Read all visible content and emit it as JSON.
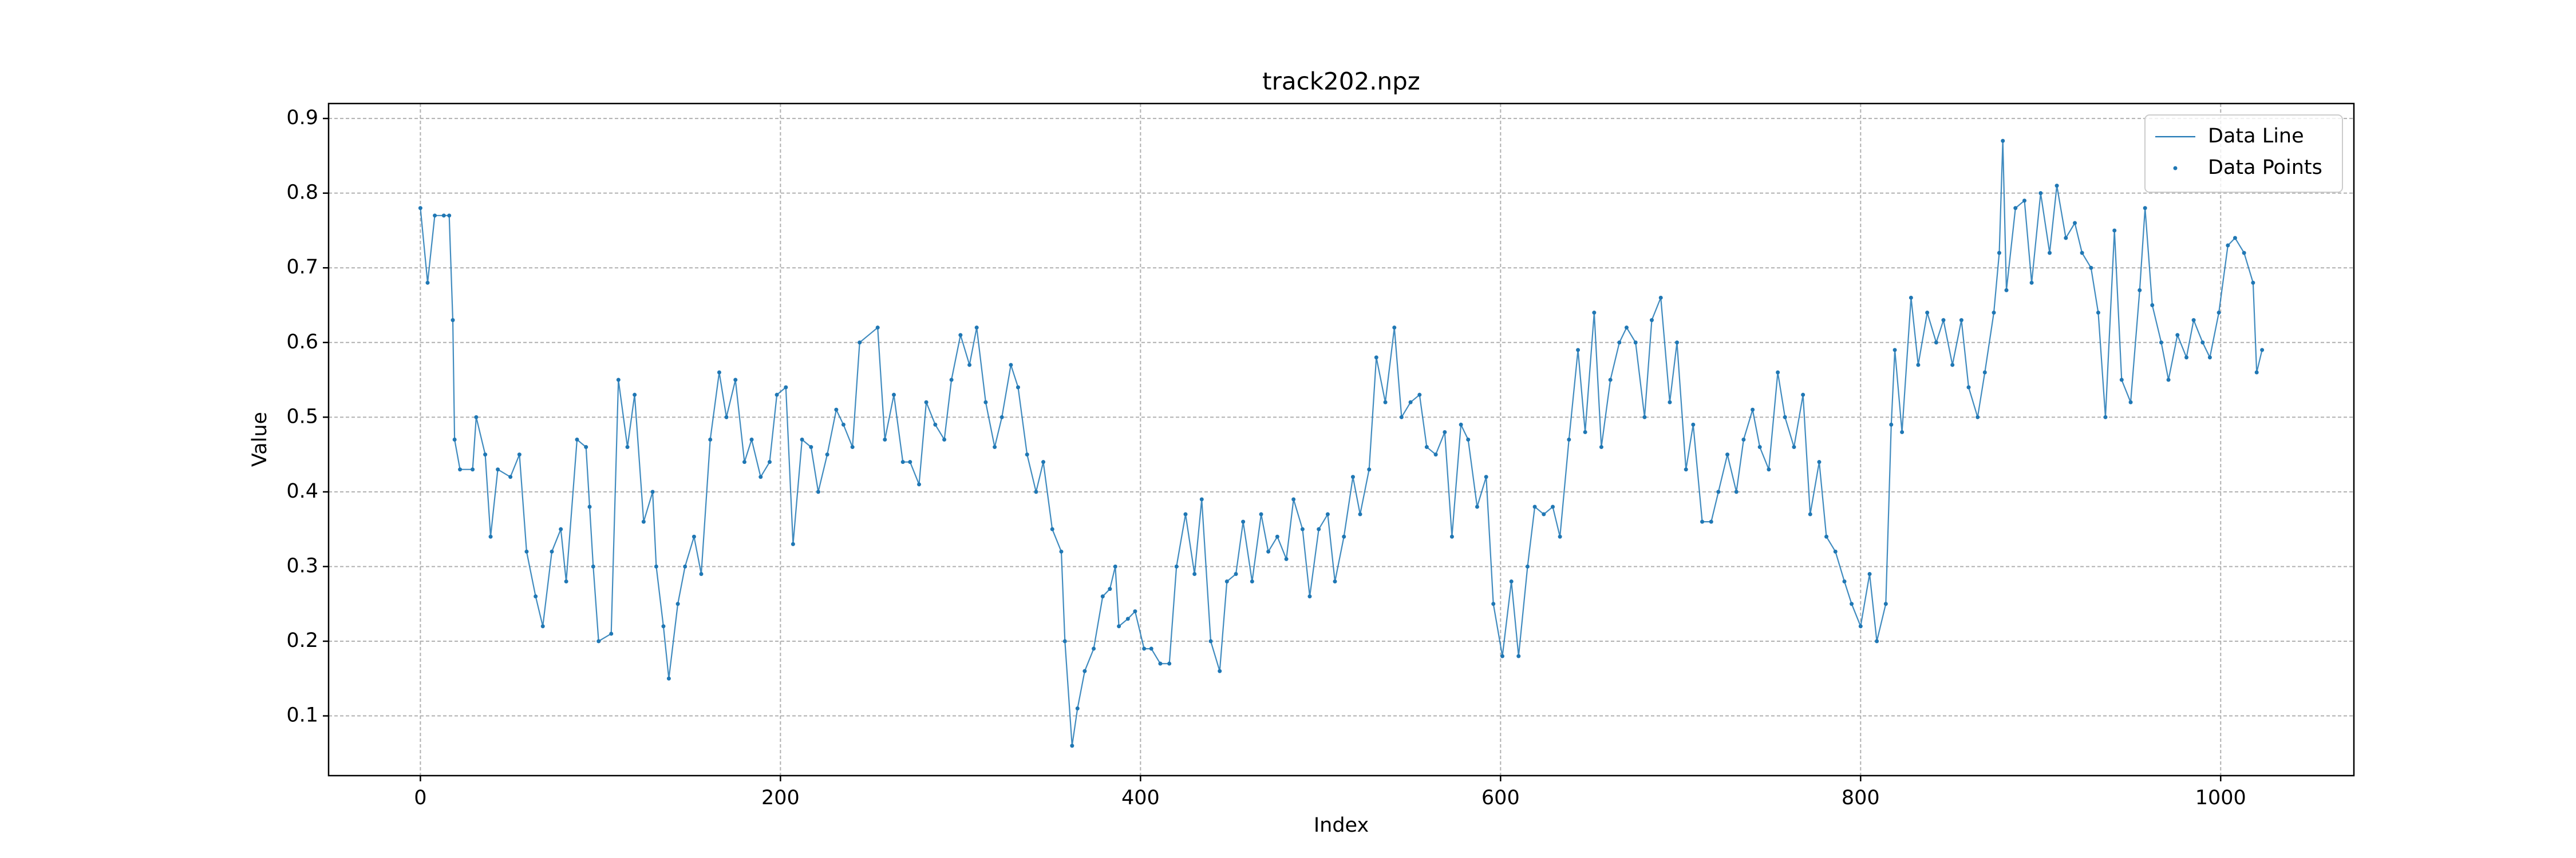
{
  "chart_data": {
    "type": "line",
    "title": "track202.npz",
    "x_label": "Index",
    "y_label": "Value",
    "x": [
      0,
      4,
      8,
      13,
      16,
      18,
      19,
      22,
      29,
      31,
      36,
      39,
      43,
      50,
      55,
      59,
      64,
      68,
      73,
      78,
      81,
      87,
      92,
      94,
      96,
      99,
      106,
      110,
      115,
      119,
      124,
      129,
      131,
      135,
      138,
      143,
      147,
      152,
      156,
      161,
      166,
      170,
      175,
      180,
      184,
      189,
      194,
      198,
      203,
      207,
      212,
      217,
      221,
      226,
      231,
      235,
      240,
      244,
      254,
      258,
      263,
      268,
      272,
      277,
      281,
      286,
      291,
      295,
      300,
      305,
      309,
      314,
      319,
      323,
      328,
      332,
      337,
      342,
      346,
      351,
      356,
      358,
      362,
      365,
      369,
      374,
      379,
      383,
      386,
      388,
      393,
      397,
      402,
      406,
      411,
      416,
      420,
      425,
      430,
      434,
      439,
      444,
      448,
      453,
      457,
      462,
      467,
      471,
      476,
      481,
      485,
      490,
      494,
      499,
      504,
      508,
      513,
      518,
      522,
      527,
      531,
      536,
      541,
      545,
      550,
      555,
      559,
      564,
      569,
      573,
      578,
      582,
      587,
      592,
      596,
      601,
      606,
      610,
      615,
      619,
      624,
      629,
      633,
      638,
      643,
      647,
      652,
      656,
      661,
      666,
      670,
      675,
      680,
      684,
      689,
      694,
      698,
      703,
      707,
      712,
      717,
      721,
      726,
      731,
      735,
      740,
      744,
      749,
      754,
      758,
      763,
      768,
      772,
      777,
      781,
      786,
      791,
      795,
      800,
      805,
      809,
      814,
      817,
      819,
      823,
      828,
      832,
      837,
      842,
      846,
      851,
      856,
      860,
      865,
      869,
      874,
      877,
      879,
      881,
      886,
      891,
      895,
      900,
      905,
      909,
      914,
      919,
      923,
      928,
      932,
      936,
      941,
      945,
      950,
      955,
      958,
      962,
      967,
      971,
      976,
      981,
      985,
      990,
      994,
      999,
      1004,
      1008,
      1013,
      1018,
      1020,
      1023
    ],
    "values": [
      0.78,
      0.68,
      0.77,
      0.77,
      0.77,
      0.63,
      0.47,
      0.43,
      0.43,
      0.5,
      0.45,
      0.34,
      0.43,
      0.42,
      0.45,
      0.32,
      0.26,
      0.22,
      0.32,
      0.35,
      0.28,
      0.47,
      0.46,
      0.38,
      0.3,
      0.2,
      0.21,
      0.55,
      0.46,
      0.53,
      0.36,
      0.4,
      0.3,
      0.22,
      0.15,
      0.25,
      0.3,
      0.34,
      0.29,
      0.47,
      0.56,
      0.5,
      0.55,
      0.44,
      0.47,
      0.42,
      0.44,
      0.53,
      0.54,
      0.33,
      0.47,
      0.46,
      0.4,
      0.45,
      0.51,
      0.49,
      0.46,
      0.6,
      0.62,
      0.47,
      0.53,
      0.44,
      0.44,
      0.41,
      0.52,
      0.49,
      0.47,
      0.55,
      0.61,
      0.57,
      0.62,
      0.52,
      0.46,
      0.5,
      0.57,
      0.54,
      0.45,
      0.4,
      0.44,
      0.35,
      0.32,
      0.2,
      0.06,
      0.11,
      0.16,
      0.19,
      0.26,
      0.27,
      0.3,
      0.22,
      0.23,
      0.24,
      0.19,
      0.19,
      0.17,
      0.17,
      0.3,
      0.37,
      0.29,
      0.39,
      0.2,
      0.16,
      0.28,
      0.29,
      0.36,
      0.28,
      0.37,
      0.32,
      0.34,
      0.31,
      0.39,
      0.35,
      0.26,
      0.35,
      0.37,
      0.28,
      0.34,
      0.42,
      0.37,
      0.43,
      0.58,
      0.52,
      0.62,
      0.5,
      0.52,
      0.53,
      0.46,
      0.45,
      0.48,
      0.34,
      0.49,
      0.47,
      0.38,
      0.42,
      0.25,
      0.18,
      0.28,
      0.18,
      0.3,
      0.38,
      0.37,
      0.38,
      0.34,
      0.47,
      0.59,
      0.48,
      0.64,
      0.46,
      0.55,
      0.6,
      0.62,
      0.6,
      0.5,
      0.63,
      0.66,
      0.52,
      0.6,
      0.43,
      0.49,
      0.36,
      0.36,
      0.4,
      0.45,
      0.4,
      0.47,
      0.51,
      0.46,
      0.43,
      0.56,
      0.5,
      0.46,
      0.53,
      0.37,
      0.44,
      0.34,
      0.32,
      0.28,
      0.25,
      0.22,
      0.29,
      0.2,
      0.25,
      0.49,
      0.59,
      0.48,
      0.66,
      0.57,
      0.64,
      0.6,
      0.63,
      0.57,
      0.63,
      0.54,
      0.5,
      0.56,
      0.64,
      0.72,
      0.87,
      0.67,
      0.78,
      0.79,
      0.68,
      0.8,
      0.72,
      0.81,
      0.74,
      0.76,
      0.72,
      0.7,
      0.64,
      0.5,
      0.75,
      0.55,
      0.52,
      0.67,
      0.78,
      0.65,
      0.6,
      0.55,
      0.61,
      0.58,
      0.63,
      0.6,
      0.58,
      0.64,
      0.73,
      0.74,
      0.72,
      0.68,
      0.56,
      0.59
    ],
    "color": "#1f77b4",
    "legend": [
      "Data Line",
      "Data Points"
    ],
    "legend_position": "upper right",
    "grid": true,
    "xlim": [
      -51,
      1074
    ],
    "ylim": [
      0.02,
      0.92
    ],
    "xticks": [
      0,
      200,
      400,
      600,
      800,
      1000
    ],
    "yticks": [
      0.1,
      0.2,
      0.3,
      0.4,
      0.5,
      0.6,
      0.7,
      0.8,
      0.9
    ]
  }
}
